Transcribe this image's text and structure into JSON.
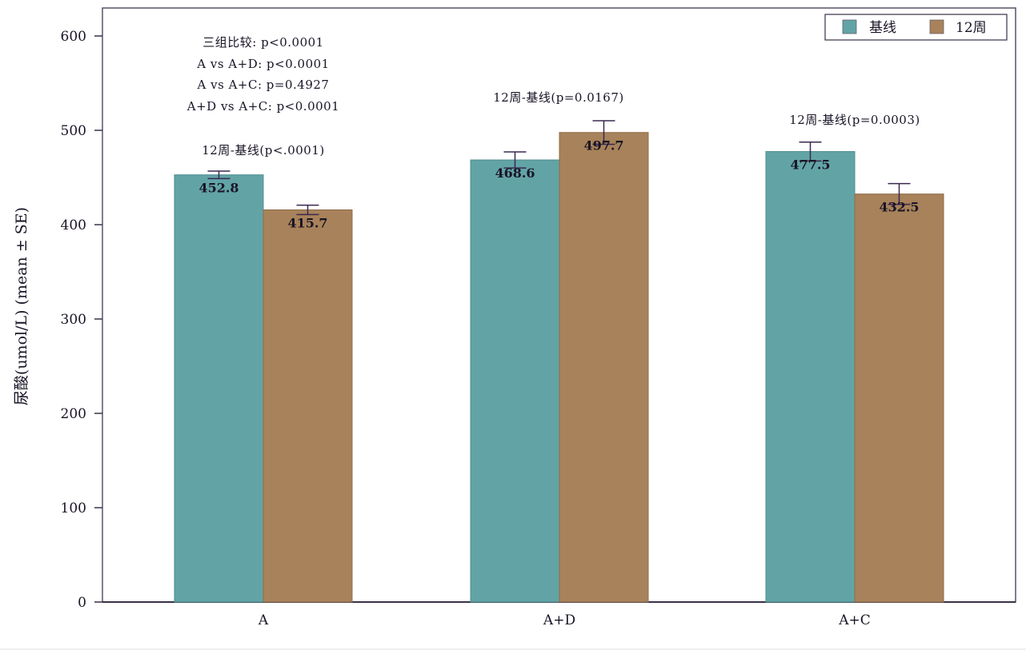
{
  "chart_data": {
    "type": "bar",
    "title": "",
    "xlabel": "",
    "ylabel": "尿酸(umol/L) (mean ± SE)",
    "ylim": [
      0,
      620
    ],
    "yticks": [
      0,
      100,
      200,
      300,
      400,
      500,
      600
    ],
    "grid": false,
    "legend_position": "top-right",
    "categories": [
      "A",
      "A+D",
      "A+C"
    ],
    "series": [
      {
        "name": "基线",
        "color": "#62A4A6",
        "values": [
          452.8,
          468.6,
          477.5
        ],
        "se": [
          4,
          8.5,
          10
        ]
      },
      {
        "name": "12周",
        "color": "#A8825A",
        "values": [
          415.7,
          497.7,
          432.5
        ],
        "se": [
          5,
          12.5,
          11
        ]
      }
    ],
    "value_labels": [
      [
        "452.8",
        "468.6",
        "477.5"
      ],
      [
        "415.7",
        "497.7",
        "432.5"
      ]
    ],
    "annotations": {
      "group_comparison": [
        "三组比较:  p<0.0001",
        "A vs A+D:  p<0.0001",
        "A vs A+C:  p=0.4927",
        "A+D vs A+C:  p<0.0001"
      ],
      "within_group": [
        "12周-基线(p<.0001)",
        "12周-基线(p=0.0167)",
        "12周-基线(p=0.0003)"
      ]
    }
  }
}
